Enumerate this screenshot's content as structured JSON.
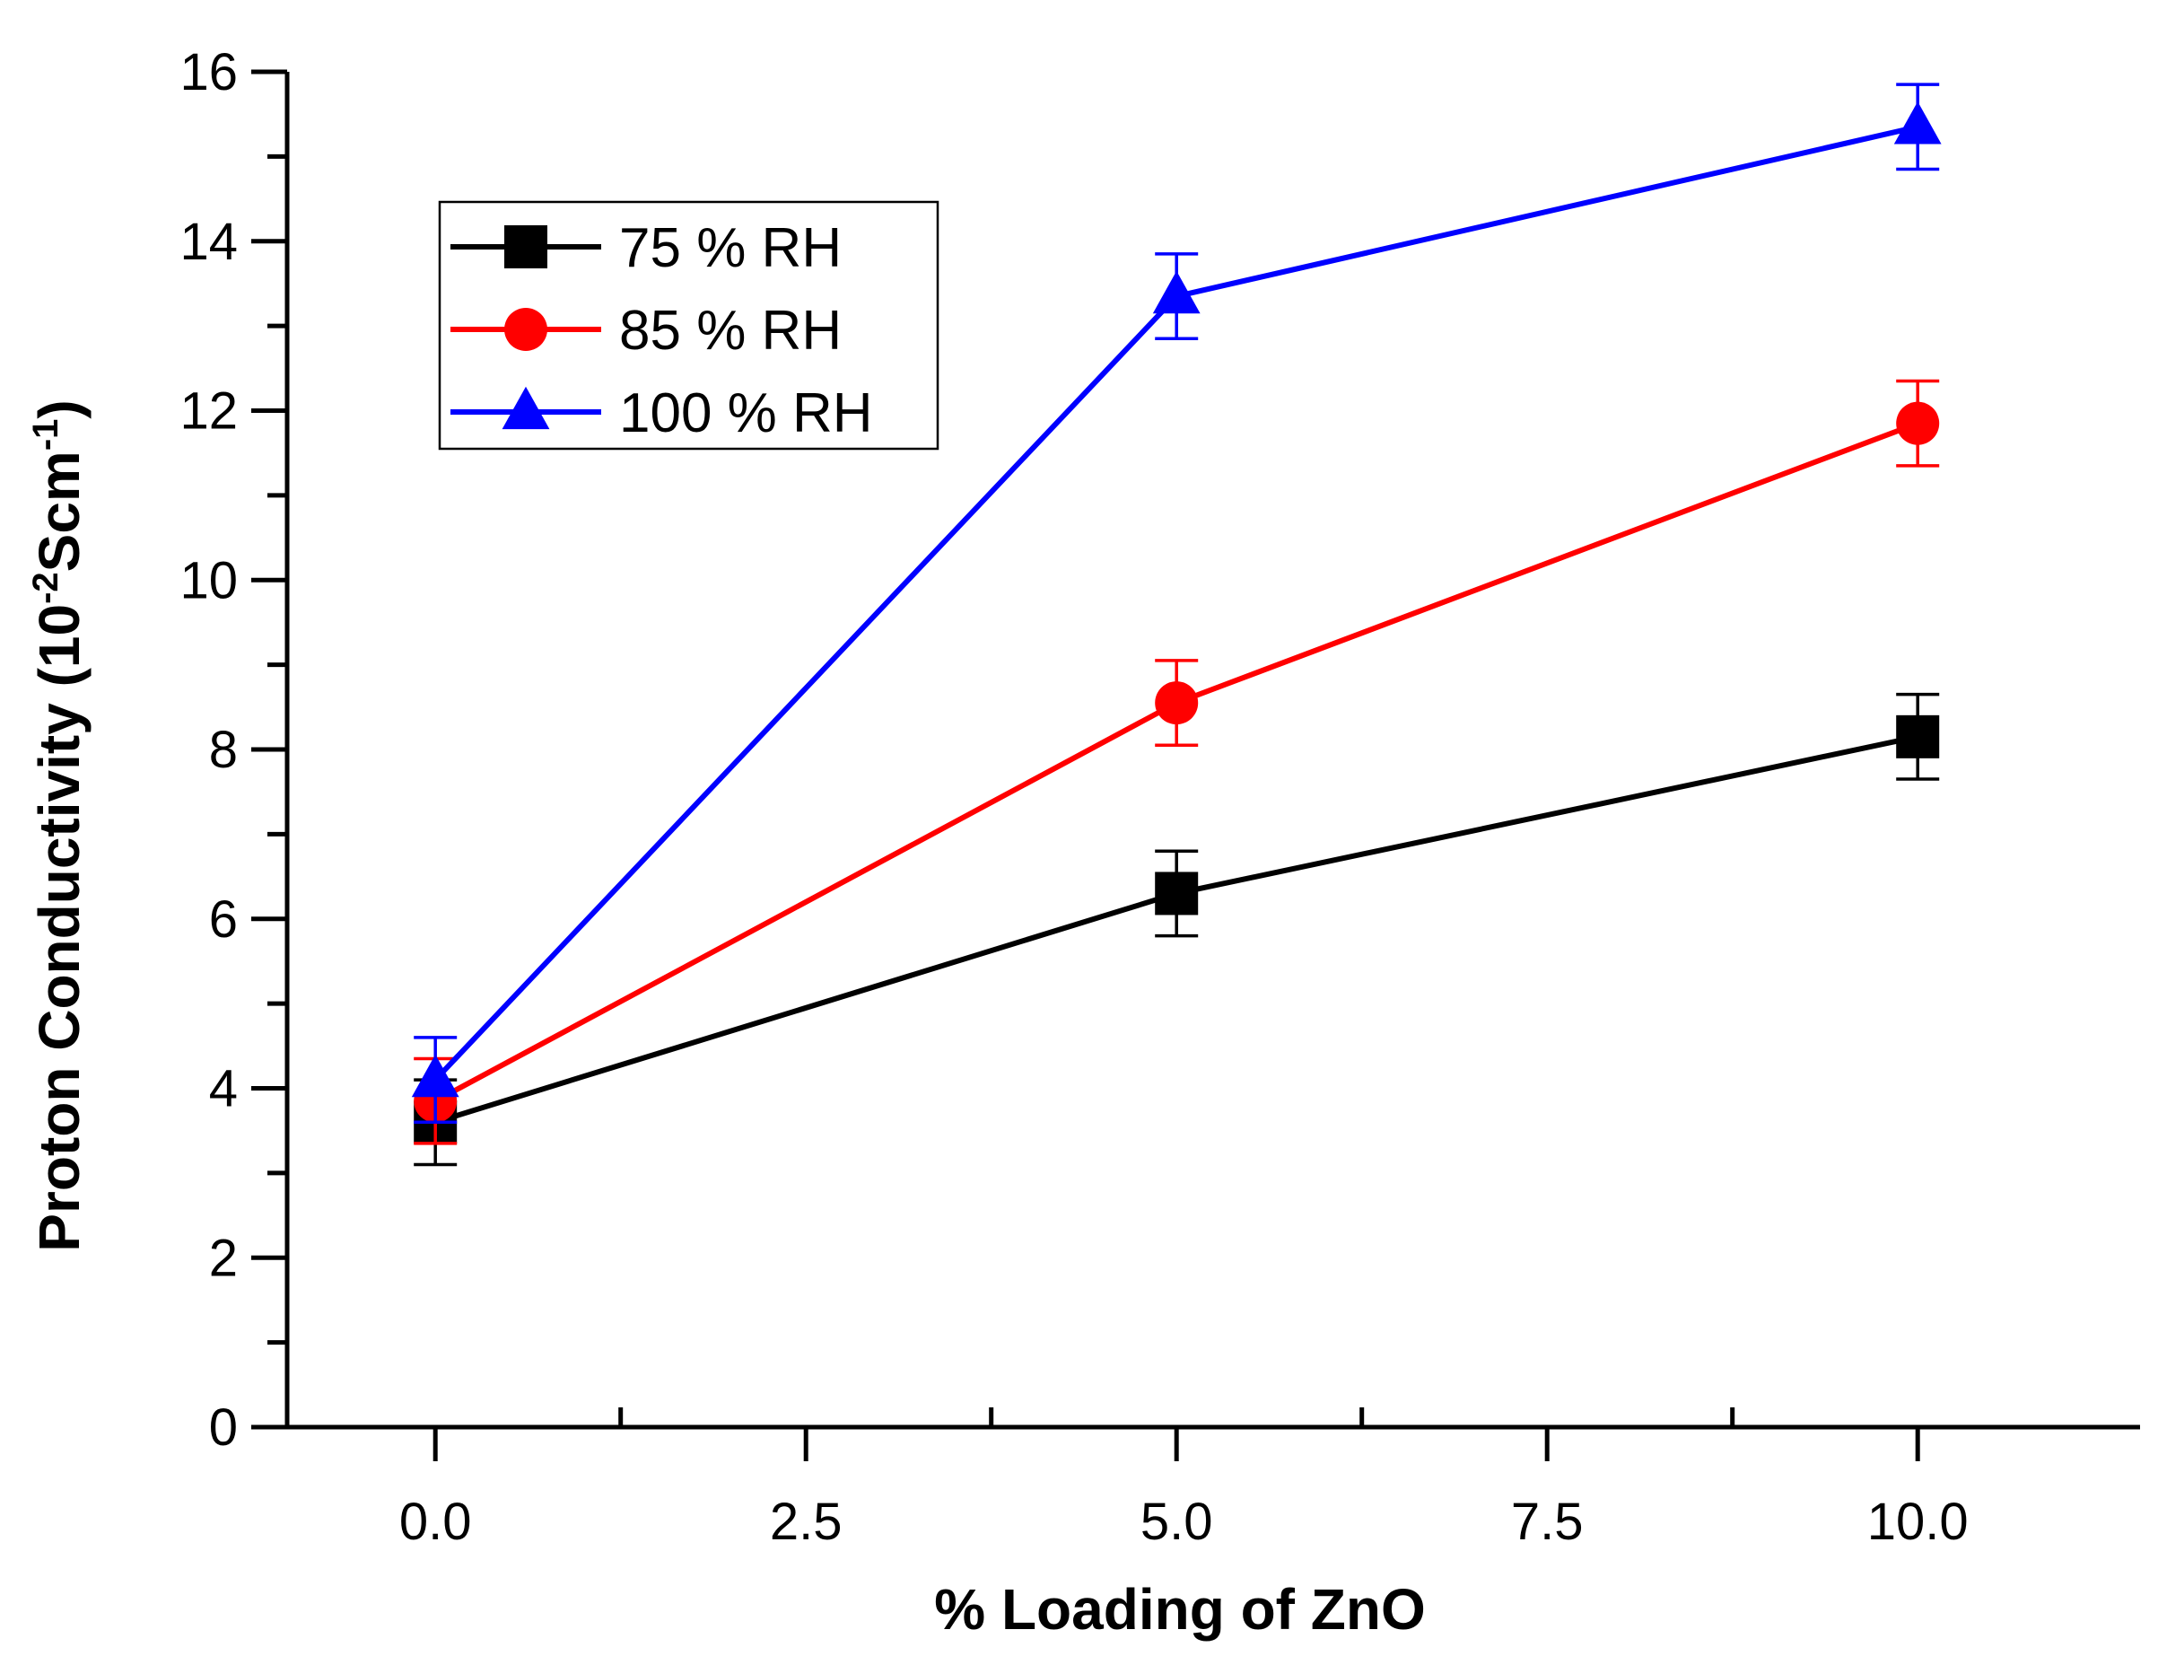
{
  "chart_data": {
    "type": "line",
    "title": "",
    "xlabel": "% Loading of ZnO",
    "ylabel": "Proton Conductivity (10",
    "ylabel_sup1": "-2",
    "ylabel_mid": "Scm",
    "ylabel_sup2": "-1",
    "ylabel_end": ")",
    "xlim": [
      -1.0,
      11.5
    ],
    "ylim": [
      0,
      16
    ],
    "x": [
      0.0,
      5.0,
      10.0
    ],
    "x_ticks": [
      0.0,
      2.5,
      5.0,
      7.5,
      10.0
    ],
    "x_tick_labels": [
      "0.0",
      "2.5",
      "5.0",
      "7.5",
      "10.0"
    ],
    "y_ticks": [
      0,
      2,
      4,
      6,
      8,
      10,
      12,
      14,
      16
    ],
    "y_tick_labels": [
      "0",
      "2",
      "4",
      "6",
      "8",
      "10",
      "12",
      "14",
      "16"
    ],
    "legend_position": "top-left",
    "series": [
      {
        "name": "75 % RH",
        "color": "#000000",
        "marker": "square",
        "values": [
          3.6,
          6.3,
          8.15
        ],
        "errors": [
          0.5,
          0.5,
          0.5
        ]
      },
      {
        "name": "85 % RH",
        "color": "#ff0000",
        "marker": "circle",
        "values": [
          3.85,
          8.55,
          11.85
        ],
        "errors": [
          0.5,
          0.5,
          0.5
        ]
      },
      {
        "name": "100 % RH",
        "color": "#0000ff",
        "marker": "triangle",
        "values": [
          4.1,
          13.35,
          15.35
        ],
        "errors": [
          0.5,
          0.5,
          0.5
        ]
      }
    ]
  }
}
